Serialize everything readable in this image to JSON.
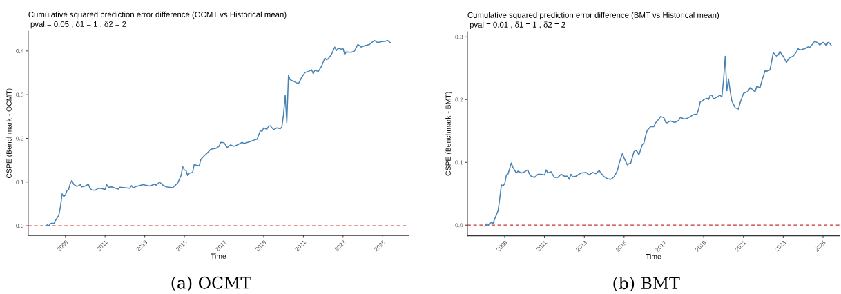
{
  "chart_data": [
    {
      "type": "line",
      "title": "Cumulative squared prediction error difference (OCMT vs Historical mean)",
      "subtitle": " pval = 0.05 , δ1 = 1 , δ2 = 2",
      "xlabel": "Time",
      "ylabel": "CSPE (Benchmark - OCMT)",
      "x": [
        "2008-01",
        "2008-02",
        "2008-03",
        "2008-04",
        "2008-05",
        "2008-06",
        "2008-07",
        "2008-09",
        "2008-10",
        "2008-11",
        "2008-12",
        "2009-01",
        "2009-02",
        "2009-03",
        "2009-04",
        "2009-05",
        "2009-06",
        "2009-08",
        "2009-10",
        "2009-11",
        "2010-01",
        "2010-03",
        "2010-04",
        "2010-05",
        "2010-07",
        "2010-09",
        "2010-11",
        "2011-01",
        "2011-02",
        "2011-03",
        "2011-05",
        "2011-09",
        "2011-10",
        "2012-01",
        "2012-04",
        "2012-05",
        "2012-06",
        "2012-08",
        "2012-12",
        "2013-04",
        "2013-07",
        "2013-08",
        "2013-10",
        "2013-12",
        "2014-02",
        "2014-06",
        "2014-07",
        "2014-09",
        "2014-11",
        "2014-12",
        "2015-01",
        "2015-02",
        "2015-03",
        "2015-04",
        "2015-06",
        "2015-07",
        "2015-09",
        "2015-10",
        "2015-11",
        "2016-01",
        "2016-03",
        "2016-05",
        "2016-08",
        "2016-10",
        "2016-11",
        "2017-01",
        "2017-03",
        "2017-05",
        "2017-07",
        "2017-09",
        "2017-12",
        "2018-01",
        "2018-05",
        "2018-08",
        "2018-09",
        "2018-11",
        "2018-12",
        "2019-01",
        "2019-03",
        "2019-04",
        "2019-05",
        "2019-07",
        "2019-09",
        "2019-11",
        "2019-12",
        "2020-01",
        "2020-02",
        "2020-03",
        "2020-04",
        "2020-05",
        "2020-07",
        "2020-09",
        "2020-10",
        "2020-12",
        "2021-02",
        "2021-04",
        "2021-06",
        "2021-07",
        "2021-08",
        "2021-10",
        "2021-12",
        "2022-02",
        "2022-03",
        "2022-04",
        "2022-06",
        "2022-08",
        "2022-09",
        "2022-10",
        "2022-12",
        "2023-01",
        "2023-02",
        "2023-03",
        "2023-06",
        "2023-08",
        "2023-10",
        "2023-12",
        "2024-02",
        "2024-05",
        "2024-08",
        "2024-10",
        "2024-12",
        "2025-02",
        "2025-04",
        "2025-05",
        "2025-06"
      ],
      "series": [
        {
          "color": "#4682b4",
          "values": [
            0.0,
            0.002,
            0.0,
            0.005,
            0.006,
            0.005,
            0.012,
            0.024,
            0.043,
            0.073,
            0.067,
            0.07,
            0.081,
            0.083,
            0.097,
            0.104,
            0.095,
            0.09,
            0.094,
            0.089,
            0.091,
            0.095,
            0.085,
            0.082,
            0.081,
            0.086,
            0.085,
            0.083,
            0.094,
            0.088,
            0.089,
            0.084,
            0.088,
            0.087,
            0.086,
            0.092,
            0.087,
            0.09,
            0.094,
            0.091,
            0.095,
            0.093,
            0.1,
            0.093,
            0.089,
            0.087,
            0.091,
            0.098,
            0.115,
            0.135,
            0.128,
            0.126,
            0.115,
            0.12,
            0.122,
            0.14,
            0.138,
            0.137,
            0.152,
            0.16,
            0.167,
            0.175,
            0.177,
            0.182,
            0.191,
            0.19,
            0.179,
            0.185,
            0.182,
            0.185,
            0.191,
            0.188,
            0.193,
            0.197,
            0.198,
            0.218,
            0.216,
            0.224,
            0.221,
            0.228,
            0.229,
            0.22,
            0.224,
            0.222,
            0.226,
            0.255,
            0.299,
            0.236,
            0.345,
            0.334,
            0.331,
            0.327,
            0.325,
            0.34,
            0.351,
            0.353,
            0.357,
            0.348,
            0.356,
            0.353,
            0.365,
            0.384,
            0.38,
            0.382,
            0.392,
            0.409,
            0.401,
            0.406,
            0.404,
            0.406,
            0.392,
            0.398,
            0.397,
            0.4,
            0.415,
            0.409,
            0.412,
            0.415,
            0.424,
            0.419,
            0.421,
            0.422,
            0.424,
            0.421,
            0.418
          ]
        }
      ],
      "xlim": [
        "2007-02-15",
        "2026-04-25"
      ],
      "ylim": [
        -0.022,
        0.445
      ],
      "xticks": [
        {
          "value": "2009-01-01",
          "label": "2009"
        },
        {
          "value": "2011-01-01",
          "label": "2011"
        },
        {
          "value": "2013-01-01",
          "label": "2013"
        },
        {
          "value": "2015-01-01",
          "label": "2015"
        },
        {
          "value": "2017-01-01",
          "label": "2017"
        },
        {
          "value": "2019-01-01",
          "label": "2019"
        },
        {
          "value": "2021-01-01",
          "label": "2021"
        },
        {
          "value": "2023-01-01",
          "label": "2023"
        },
        {
          "value": "2025-01-01",
          "label": "2025"
        }
      ],
      "yticks": [
        {
          "value": 0,
          "label": "0.0"
        },
        0.1,
        0.2,
        0.3,
        0.4
      ],
      "ref_lines": [
        {
          "axis": "y",
          "value": 0,
          "color": "#cc3333",
          "line_style": "dashed"
        }
      ],
      "annotations": [
        "(a) OCMT"
      ]
    },
    {
      "type": "line",
      "title": "Cumulative squared prediction error difference (BMT vs Historical mean)",
      "subtitle": " pval = 0.01 , δ1 = 1 , δ2 = 2",
      "xlabel": "Time",
      "ylabel": "CSPE (Benchmark - BMT)",
      "x": [
        "2008-01",
        "2008-02",
        "2008-03",
        "2008-04",
        "2008-05",
        "2008-06",
        "2008-07",
        "2008-09",
        "2008-10",
        "2008-11",
        "2008-12",
        "2009-01",
        "2009-02",
        "2009-03",
        "2009-04",
        "2009-05",
        "2009-06",
        "2009-08",
        "2009-09",
        "2009-11",
        "2010-01",
        "2010-03",
        "2010-04",
        "2010-05",
        "2010-07",
        "2010-09",
        "2010-11",
        "2011-01",
        "2011-02",
        "2011-03",
        "2011-05",
        "2011-07",
        "2011-09",
        "2011-11",
        "2012-01",
        "2012-03",
        "2012-04",
        "2012-05",
        "2012-06",
        "2012-08",
        "2012-11",
        "2013-02",
        "2013-04",
        "2013-06",
        "2013-08",
        "2013-10",
        "2013-11",
        "2014-01",
        "2014-03",
        "2014-05",
        "2014-07",
        "2014-09",
        "2014-10",
        "2014-12",
        "2015-01",
        "2015-03",
        "2015-04",
        "2015-05",
        "2015-07",
        "2015-08",
        "2015-09",
        "2015-10",
        "2015-12",
        "2016-01",
        "2016-02",
        "2016-03",
        "2016-05",
        "2016-07",
        "2016-08",
        "2016-10",
        "2016-11",
        "2017-01",
        "2017-02",
        "2017-03",
        "2017-05",
        "2017-07",
        "2017-08",
        "2017-10",
        "2017-11",
        "2018-01",
        "2018-03",
        "2018-05",
        "2018-07",
        "2018-09",
        "2018-10",
        "2018-11",
        "2018-12",
        "2019-01",
        "2019-03",
        "2019-04",
        "2019-05",
        "2019-06",
        "2019-07",
        "2019-09",
        "2019-11",
        "2019-12",
        "2020-01",
        "2020-02",
        "2020-03",
        "2020-04",
        "2020-05",
        "2020-06",
        "2020-08",
        "2020-10",
        "2020-11",
        "2021-01",
        "2021-03",
        "2021-04",
        "2021-05",
        "2021-07",
        "2021-08",
        "2021-09",
        "2021-11",
        "2021-12",
        "2022-02",
        "2022-03",
        "2022-05",
        "2022-06",
        "2022-07",
        "2022-09",
        "2022-10",
        "2022-11",
        "2022-12",
        "2023-01",
        "2023-03",
        "2023-04",
        "2023-05",
        "2023-07",
        "2023-09",
        "2023-10",
        "2023-11",
        "2024-02",
        "2024-04",
        "2024-05",
        "2024-07",
        "2024-08",
        "2024-10",
        "2024-11",
        "2025-01",
        "2025-02",
        "2025-03",
        "2025-04",
        "2025-05",
        "2025-06"
      ],
      "series": [
        {
          "color": "#4682b4",
          "values": [
            -0.002,
            0.002,
            -0.001,
            0.003,
            0.004,
            0.003,
            0.01,
            0.023,
            0.042,
            0.064,
            0.063,
            0.066,
            0.08,
            0.081,
            0.09,
            0.099,
            0.092,
            0.083,
            0.086,
            0.083,
            0.085,
            0.088,
            0.081,
            0.078,
            0.076,
            0.081,
            0.081,
            0.08,
            0.088,
            0.083,
            0.085,
            0.076,
            0.076,
            0.081,
            0.078,
            0.078,
            0.073,
            0.081,
            0.077,
            0.078,
            0.083,
            0.084,
            0.08,
            0.084,
            0.082,
            0.087,
            0.083,
            0.077,
            0.074,
            0.073,
            0.077,
            0.087,
            0.098,
            0.114,
            0.107,
            0.096,
            0.098,
            0.098,
            0.117,
            0.119,
            0.117,
            0.112,
            0.128,
            0.131,
            0.143,
            0.151,
            0.157,
            0.157,
            0.163,
            0.169,
            0.173,
            0.171,
            0.164,
            0.163,
            0.166,
            0.164,
            0.164,
            0.167,
            0.172,
            0.169,
            0.17,
            0.173,
            0.176,
            0.177,
            0.185,
            0.197,
            0.197,
            0.2,
            0.202,
            0.2,
            0.207,
            0.207,
            0.201,
            0.204,
            0.207,
            0.204,
            0.231,
            0.269,
            0.214,
            0.233,
            0.214,
            0.198,
            0.187,
            0.185,
            0.195,
            0.21,
            0.212,
            0.214,
            0.219,
            0.215,
            0.212,
            0.221,
            0.219,
            0.229,
            0.246,
            0.245,
            0.247,
            0.26,
            0.275,
            0.269,
            0.271,
            0.277,
            0.272,
            0.269,
            0.259,
            0.264,
            0.267,
            0.269,
            0.276,
            0.281,
            0.279,
            0.281,
            0.284,
            0.283,
            0.289,
            0.293,
            0.29,
            0.287,
            0.291,
            0.289,
            0.286,
            0.291,
            0.29,
            0.286
          ]
        }
      ],
      "xlim": [
        "2007-02-15",
        "2025-11-01"
      ],
      "ylim": [
        -0.0168,
        0.3078
      ],
      "xticks": [
        {
          "value": "2009-01-01",
          "label": "2009"
        },
        {
          "value": "2011-01-01",
          "label": "2011"
        },
        {
          "value": "2013-01-01",
          "label": "2013"
        },
        {
          "value": "2015-01-01",
          "label": "2015"
        },
        {
          "value": "2017-01-01",
          "label": "2017"
        },
        {
          "value": "2019-01-01",
          "label": "2019"
        },
        {
          "value": "2021-01-01",
          "label": "2021"
        },
        {
          "value": "2023-01-01",
          "label": "2023"
        },
        {
          "value": "2025-01-01",
          "label": "2025"
        }
      ],
      "yticks": [
        {
          "value": 0,
          "label": "0.0"
        },
        0.1,
        0.2,
        0.3
      ],
      "ref_lines": [
        {
          "axis": "y",
          "value": 0,
          "color": "#cc3333",
          "line_style": "dashed"
        }
      ],
      "annotations": [
        "(b) BMT"
      ]
    }
  ]
}
